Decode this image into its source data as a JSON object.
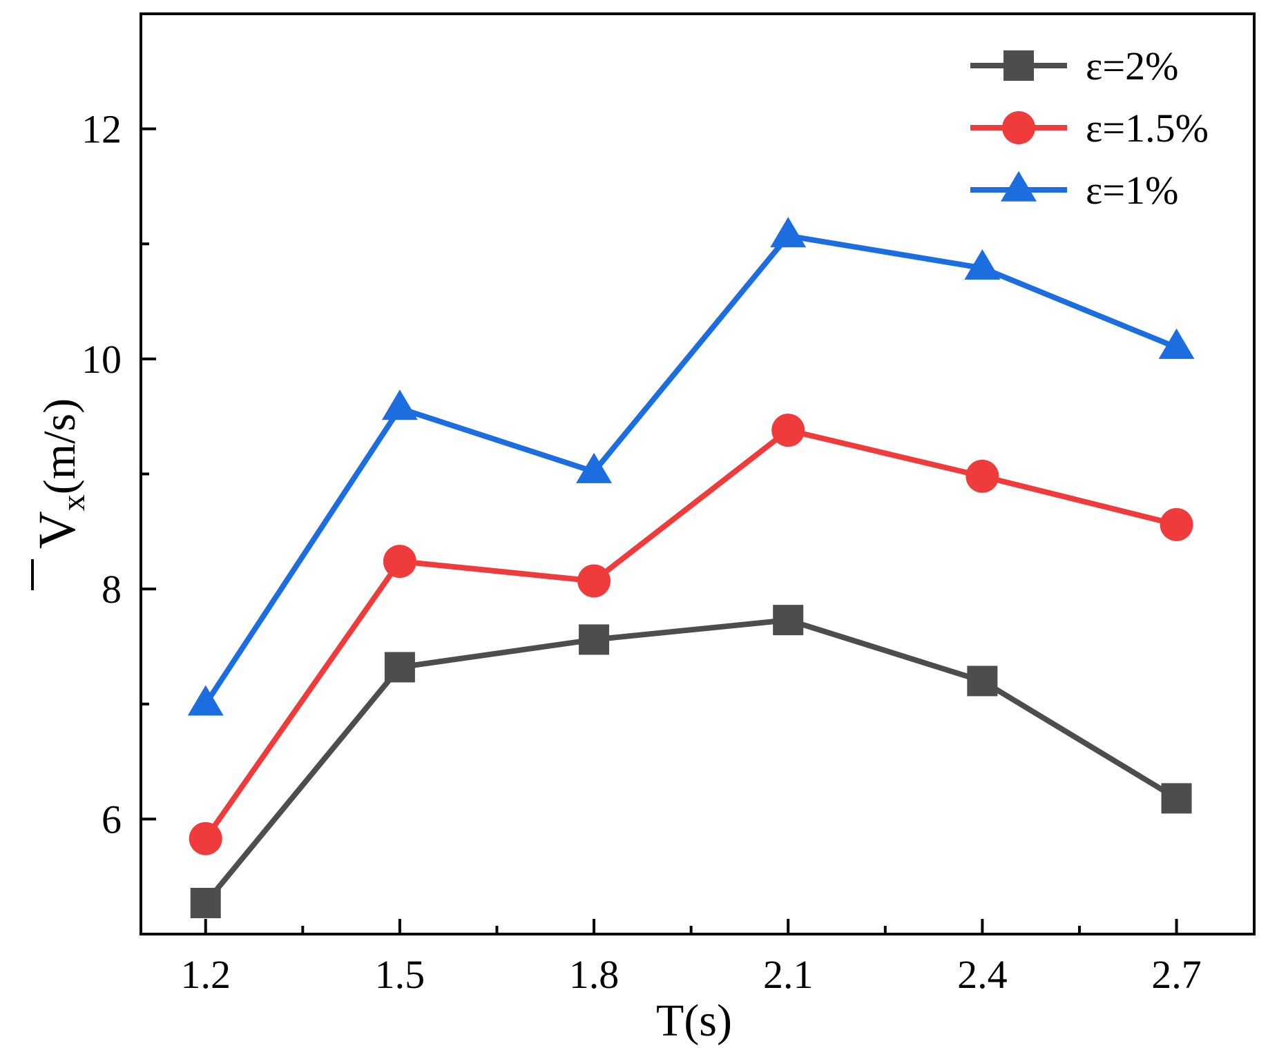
{
  "chart_data": {
    "type": "line",
    "title": "",
    "xlabel": "T(s)",
    "ylabel": {
      "main": "V",
      "subscript": "x",
      "unit": "(m/s)",
      "overline": true
    },
    "x": [
      1.2,
      1.5,
      1.8,
      2.1,
      2.4,
      2.7
    ],
    "x_tick_labels": [
      "1.2",
      "1.5",
      "1.8",
      "2.1",
      "2.4",
      "2.7"
    ],
    "y_ticks": [
      6,
      8,
      10,
      12
    ],
    "y_tick_labels": [
      "6",
      "8",
      "10",
      "12"
    ],
    "xlim": [
      1.1,
      2.82
    ],
    "ylim": [
      5.0,
      13.0
    ],
    "grid": false,
    "legend_position": "top-right",
    "series": [
      {
        "name": "ε=2%",
        "color": "#4d4d4d",
        "marker": "square",
        "values": [
          5.27,
          7.32,
          7.56,
          7.73,
          7.2,
          6.18
        ]
      },
      {
        "name": "ε=1.5%",
        "color": "#ef3b3b",
        "marker": "circle",
        "values": [
          5.83,
          8.24,
          8.07,
          9.38,
          8.98,
          8.56
        ]
      },
      {
        "name": "ε=1%",
        "color": "#1c6ee0",
        "marker": "triangle",
        "values": [
          7.0,
          9.57,
          9.02,
          11.07,
          10.79,
          10.1
        ]
      }
    ]
  }
}
